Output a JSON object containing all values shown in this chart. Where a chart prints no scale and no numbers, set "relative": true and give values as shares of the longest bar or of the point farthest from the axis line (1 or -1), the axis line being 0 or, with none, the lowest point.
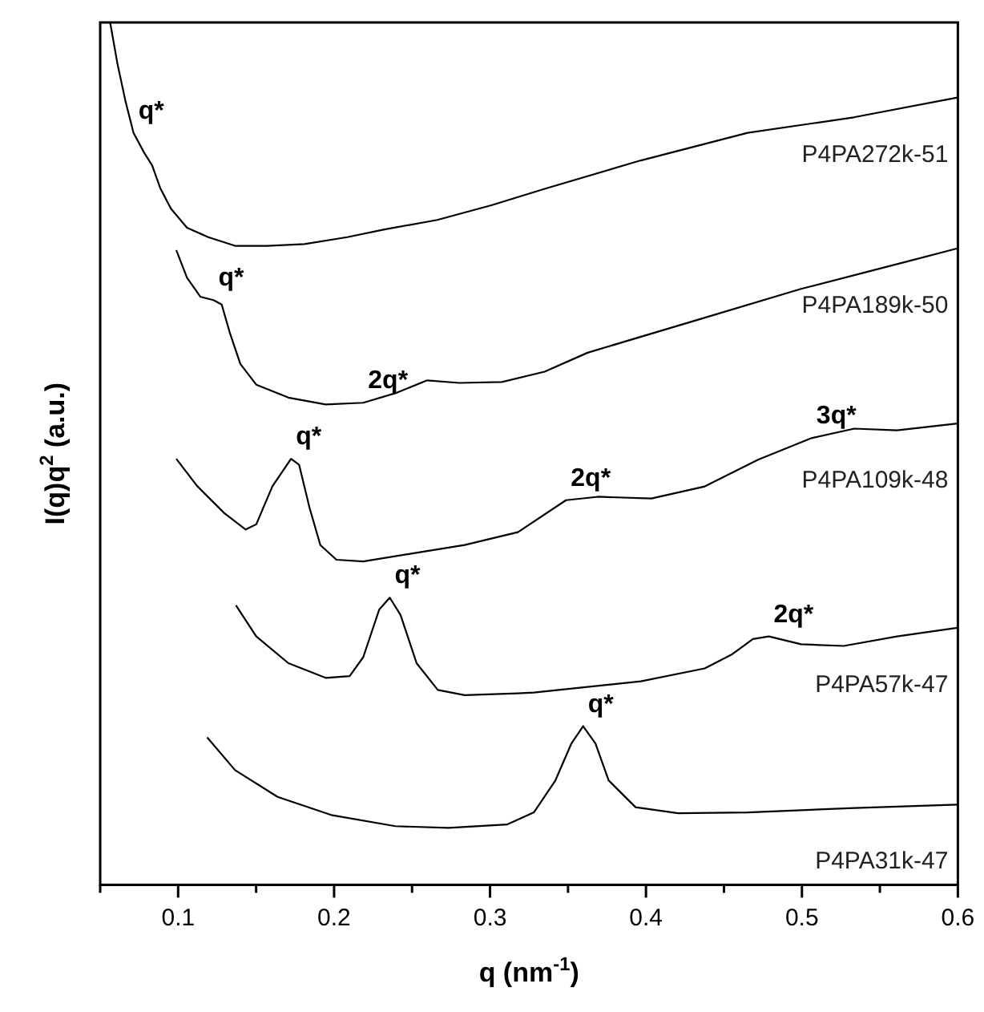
{
  "chart_data": {
    "type": "line",
    "relative": true,
    "xlabel": "q (nm$^{-1}$)",
    "ylabel": "I(q)q$^{2}$ (a.u.)",
    "xlim": [
      0.05,
      0.6
    ],
    "xticks": [
      {
        "value": 0.05,
        "label": null
      },
      0.1,
      {
        "value": 0.15,
        "label": null
      },
      0.2,
      {
        "value": 0.25,
        "label": null
      },
      0.3,
      {
        "value": 0.35,
        "label": null
      },
      0.4,
      {
        "value": 0.45,
        "label": null
      },
      0.5,
      {
        "value": 0.55,
        "label": null
      },
      0.6
    ],
    "series": [
      {
        "name": "P4PA272k-51",
        "color": "#000000",
        "x": [
          0.0564,
          0.0611,
          0.0662,
          0.0714,
          0.0782,
          0.0834,
          0.0885,
          0.0954,
          0.1057,
          0.1193,
          0.1365,
          0.157,
          0.181,
          0.2084,
          0.2323,
          0.2662,
          0.3008,
          0.335,
          0.3967,
          0.4652,
          0.5333,
          0.5997
        ],
        "values": [
          1.0,
          0.952,
          0.909,
          0.872,
          0.849,
          0.834,
          0.808,
          0.784,
          0.762,
          0.751,
          0.741,
          0.741,
          0.743,
          0.751,
          0.76,
          0.771,
          0.788,
          0.807,
          0.84,
          0.872,
          0.89,
          0.913
        ]
      },
      {
        "name": "P4PA189k-50",
        "color": "#000000",
        "x": [
          0.0988,
          0.1057,
          0.1142,
          0.1227,
          0.1279,
          0.133,
          0.1399,
          0.1501,
          0.1707,
          0.1946,
          0.2187,
          0.2392,
          0.2597,
          0.2803,
          0.3076,
          0.335,
          0.3625,
          0.4309,
          0.4994,
          0.5679,
          0.5997
        ],
        "values": [
          0.736,
          0.704,
          0.682,
          0.678,
          0.673,
          0.641,
          0.604,
          0.58,
          0.565,
          0.557,
          0.559,
          0.57,
          0.585,
          0.582,
          0.583,
          0.595,
          0.617,
          0.654,
          0.691,
          0.723,
          0.738
        ]
      },
      {
        "name": "P4PA109k-48",
        "color": "#000000",
        "x": [
          0.0988,
          0.1124,
          0.1296,
          0.1433,
          0.1501,
          0.1604,
          0.1724,
          0.1776,
          0.1843,
          0.1912,
          0.2015,
          0.2187,
          0.2495,
          0.2837,
          0.3179,
          0.3487,
          0.3692,
          0.4035,
          0.4377,
          0.4719,
          0.5062,
          0.5336,
          0.561,
          0.5997
        ],
        "values": [
          0.494,
          0.462,
          0.431,
          0.412,
          0.418,
          0.462,
          0.494,
          0.487,
          0.437,
          0.394,
          0.377,
          0.375,
          0.384,
          0.394,
          0.409,
          0.446,
          0.45,
          0.448,
          0.462,
          0.493,
          0.518,
          0.529,
          0.527,
          0.535
        ]
      },
      {
        "name": "P4PA57k-47",
        "color": "#000000",
        "x": [
          0.1371,
          0.1501,
          0.1707,
          0.1946,
          0.21,
          0.2187,
          0.2289,
          0.2357,
          0.2426,
          0.2529,
          0.2665,
          0.2837,
          0.3179,
          0.3281,
          0.3967,
          0.4377,
          0.4549,
          0.4686,
          0.4788,
          0.4994,
          0.5268,
          0.561,
          0.5997
        ],
        "values": [
          0.324,
          0.288,
          0.257,
          0.24,
          0.242,
          0.264,
          0.319,
          0.333,
          0.313,
          0.257,
          0.226,
          0.22,
          0.222,
          0.223,
          0.236,
          0.251,
          0.267,
          0.285,
          0.288,
          0.279,
          0.277,
          0.288,
          0.298
        ]
      },
      {
        "name": "P4PA31k-47",
        "color": "#000000",
        "x": [
          0.1186,
          0.1365,
          0.1638,
          0.1981,
          0.2392,
          0.2734,
          0.3111,
          0.3281,
          0.3419,
          0.3522,
          0.3597,
          0.3676,
          0.3761,
          0.3933,
          0.4206,
          0.4652,
          0.5336,
          0.5997
        ],
        "values": [
          0.171,
          0.133,
          0.102,
          0.081,
          0.068,
          0.066,
          0.07,
          0.084,
          0.121,
          0.164,
          0.184,
          0.164,
          0.121,
          0.09,
          0.083,
          0.084,
          0.089,
          0.093
        ]
      }
    ],
    "annotations": [
      {
        "text": "q*",
        "x": 0.0714,
        "y": 0.872
      },
      {
        "text": "q*",
        "x": 0.1227,
        "y": 0.678
      },
      {
        "text": "2q*",
        "x": 0.2187,
        "y": 0.559
      },
      {
        "text": "q*",
        "x": 0.1724,
        "y": 0.494
      },
      {
        "text": "2q*",
        "x": 0.3487,
        "y": 0.446
      },
      {
        "text": "3q*",
        "x": 0.5062,
        "y": 0.518
      },
      {
        "text": "q*",
        "x": 0.2357,
        "y": 0.333
      },
      {
        "text": "2q*",
        "x": 0.4788,
        "y": 0.288
      },
      {
        "text": "q*",
        "x": 0.3597,
        "y": 0.184
      }
    ]
  }
}
